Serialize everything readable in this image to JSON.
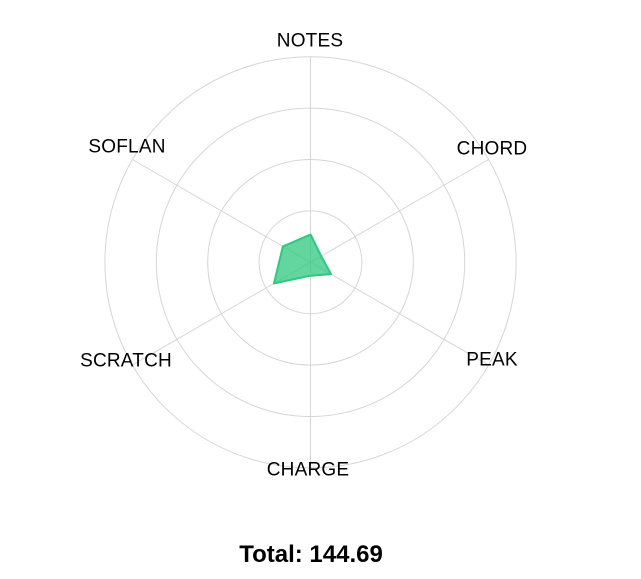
{
  "chart_data": {
    "type": "radar",
    "categories": [
      "NOTES",
      "CHORD",
      "PEAK",
      "CHARGE",
      "SCRATCH",
      "SOFLAN"
    ],
    "values": [
      27,
      12,
      23,
      13,
      41,
      31
    ],
    "axis_max": 200,
    "ring_count": 4,
    "grid_shape": "circular",
    "legend": "none",
    "tick_labels": "none",
    "total": 144.69,
    "colors": {
      "series_stroke": "#2ec87e",
      "series_fill": "rgba(46, 200, 126, 0.75)",
      "grid_line": "#d6d6d6",
      "label_text": "#000000",
      "background": "#ffffff"
    }
  },
  "labels": {
    "notes": "NOTES",
    "chord": "CHORD",
    "peak": "PEAK",
    "charge": "CHARGE",
    "scratch": "SCRATCH",
    "soflan": "SOFLAN"
  },
  "total_text": "Total: 144.69"
}
